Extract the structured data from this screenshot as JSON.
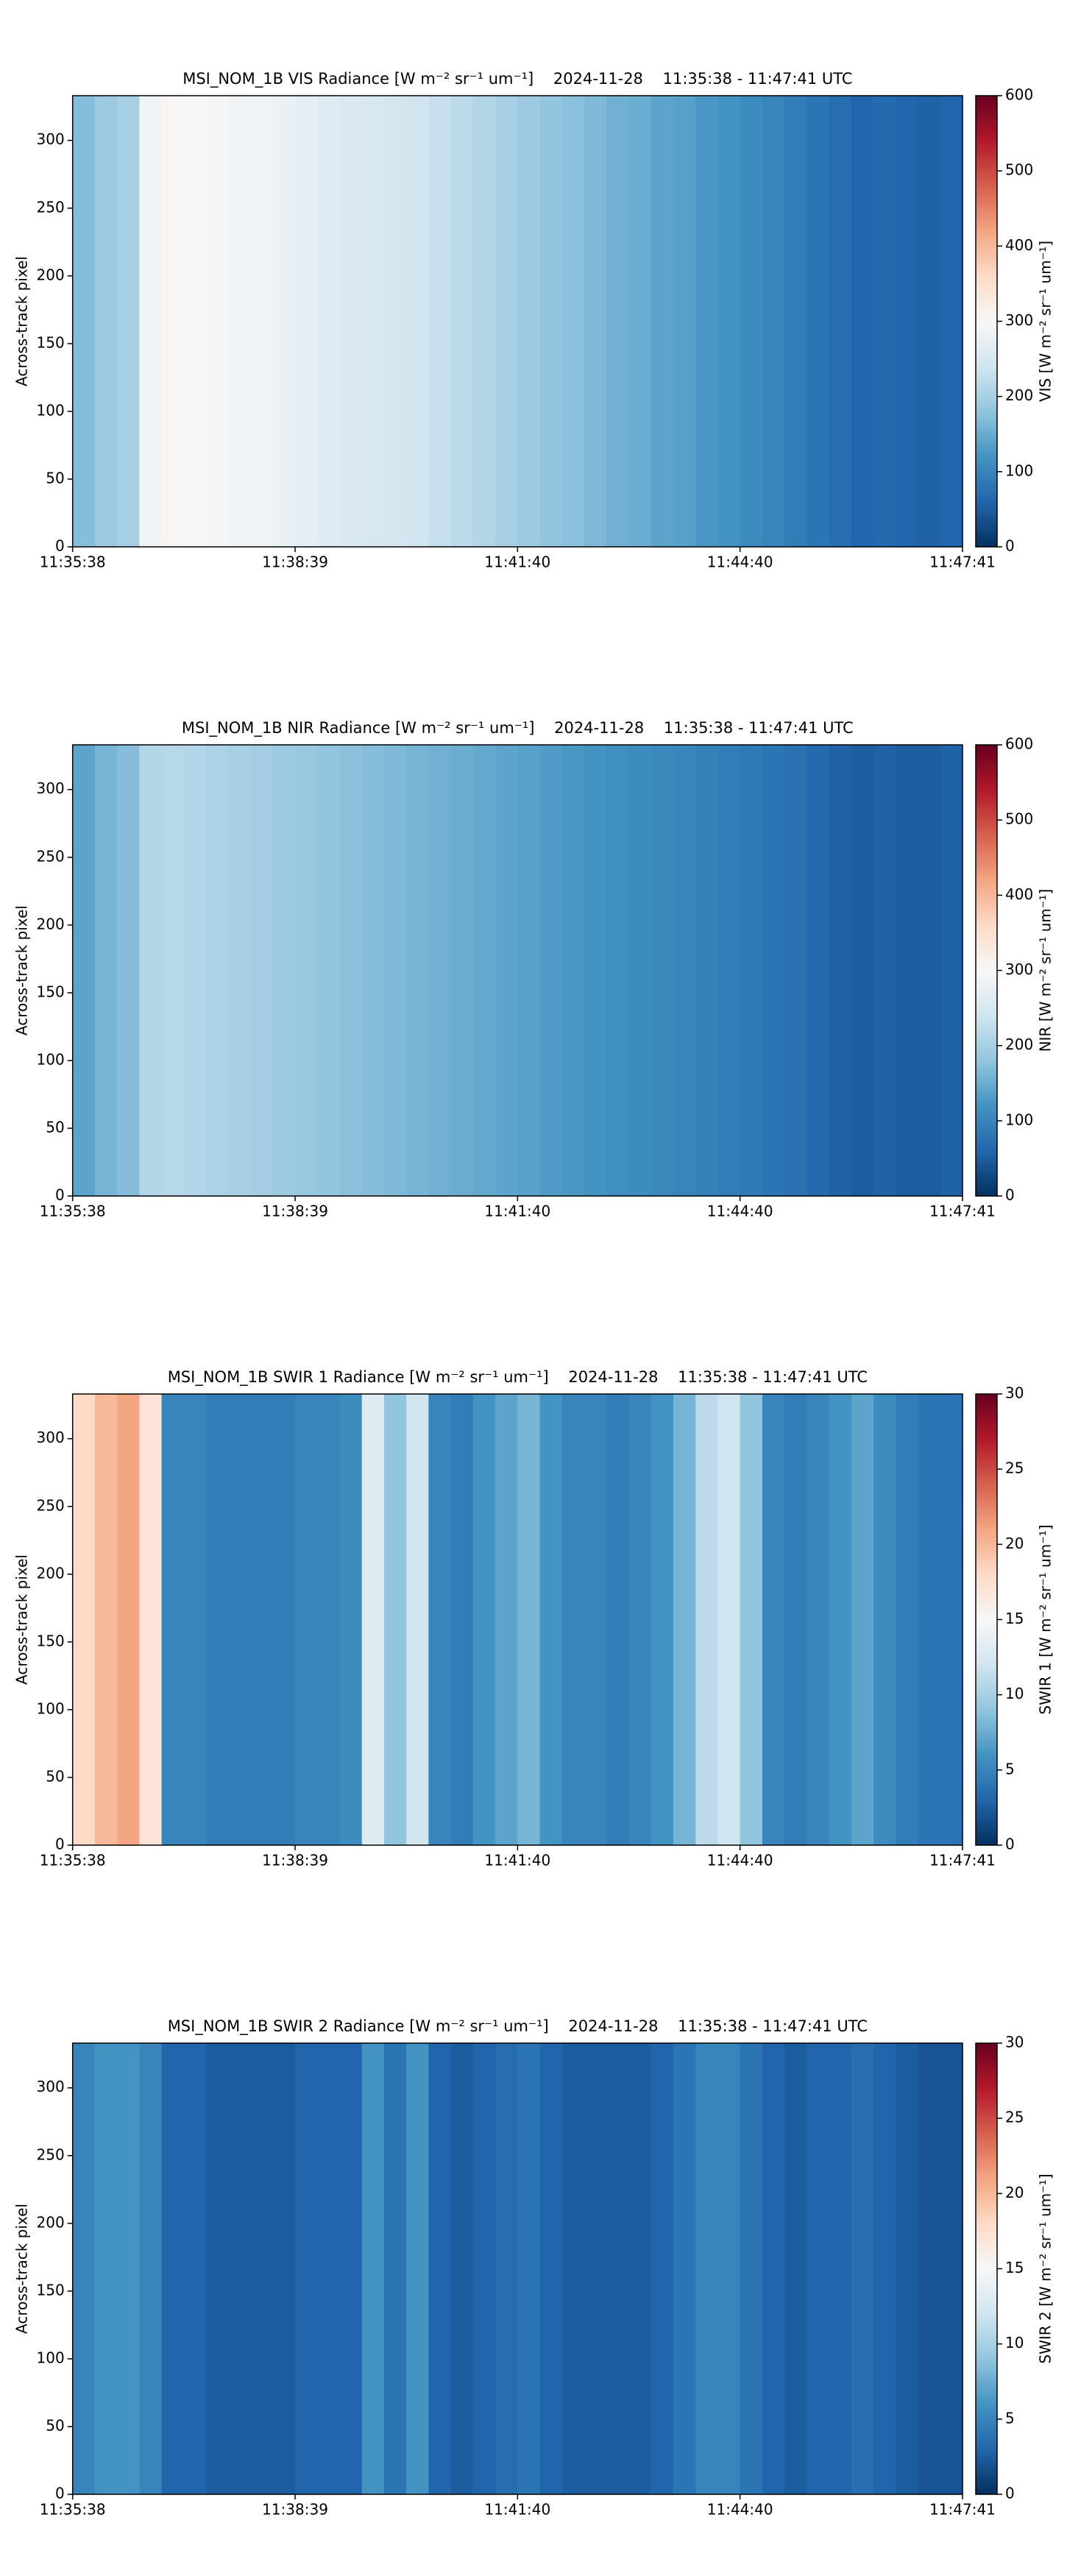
{
  "chart_data": [
    {
      "type": "heatmap",
      "title": "MSI_NOM_1B VIS Radiance [W m⁻² sr⁻¹ um⁻¹]    2024-11-28    11:35:38 - 11:47:41 UTC",
      "ylabel": "Across-track pixel",
      "xticks": [
        "11:35:38",
        "11:38:39",
        "11:41:40",
        "11:44:40",
        "11:47:41"
      ],
      "ylim": [
        0,
        333
      ],
      "yticks": [
        0,
        50,
        100,
        150,
        200,
        250,
        300
      ],
      "zlim": [
        0,
        600
      ],
      "zticks": [
        0,
        100,
        200,
        300,
        400,
        500,
        600
      ],
      "zlabel": "VIS [W m⁻² sr⁻¹ um⁻¹]",
      "colormap": "RdBu_r",
      "values": [
        170,
        190,
        200,
        290,
        305,
        300,
        295,
        290,
        285,
        280,
        270,
        260,
        255,
        250,
        245,
        240,
        230,
        220,
        210,
        200,
        190,
        180,
        175,
        165,
        155,
        150,
        140,
        135,
        125,
        120,
        110,
        100,
        90,
        80,
        70,
        60,
        65,
        60,
        55,
        60
      ]
    },
    {
      "type": "heatmap",
      "title": "MSI_NOM_1B NIR Radiance [W m⁻² sr⁻¹ um⁻¹]    2024-11-28    11:35:38 - 11:47:41 UTC",
      "ylabel": "Across-track pixel",
      "xticks": [
        "11:35:38",
        "11:38:39",
        "11:41:40",
        "11:44:40",
        "11:47:41"
      ],
      "ylim": [
        0,
        333
      ],
      "yticks": [
        0,
        50,
        100,
        150,
        200,
        250,
        300
      ],
      "zlim": [
        0,
        600
      ],
      "zticks": [
        0,
        100,
        200,
        300,
        400,
        500,
        600
      ],
      "zlabel": "NIR [W m⁻² sr⁻¹ um⁻¹]",
      "colormap": "RdBu_r",
      "values": [
        140,
        160,
        170,
        210,
        215,
        210,
        205,
        200,
        195,
        190,
        185,
        180,
        175,
        170,
        165,
        160,
        155,
        150,
        145,
        140,
        135,
        130,
        125,
        120,
        115,
        110,
        105,
        100,
        95,
        90,
        85,
        80,
        75,
        65,
        55,
        50,
        55,
        50,
        50,
        55
      ]
    },
    {
      "type": "heatmap",
      "title": "MSI_NOM_1B SWIR 1 Radiance [W m⁻² sr⁻¹ um⁻¹]    2024-11-28    11:35:38 - 11:47:41 UTC",
      "ylabel": "Across-track pixel",
      "xticks": [
        "11:35:38",
        "11:38:39",
        "11:41:40",
        "11:44:40",
        "11:47:41"
      ],
      "ylim": [
        0,
        333
      ],
      "yticks": [
        0,
        50,
        100,
        150,
        200,
        250,
        300
      ],
      "zlim": [
        0,
        30
      ],
      "zticks": [
        0,
        5,
        10,
        15,
        20,
        25,
        30
      ],
      "zlabel": "SWIR 1 [W m⁻² sr⁻¹ um⁻¹]",
      "colormap": "RdBu_r",
      "values": [
        18,
        20,
        21,
        17,
        5,
        5,
        4.5,
        4.5,
        4.5,
        4.5,
        5,
        5,
        5.5,
        13,
        9,
        12,
        5,
        4.5,
        6,
        7,
        8,
        6,
        5,
        5,
        4.5,
        5,
        6,
        8,
        11,
        12,
        9,
        5,
        4.5,
        5,
        6,
        7,
        5.5,
        4.5,
        4,
        4
      ]
    },
    {
      "type": "heatmap",
      "title": "MSI_NOM_1B SWIR 2 Radiance [W m⁻² sr⁻¹ um⁻¹]    2024-11-28    11:35:38 - 11:47:41 UTC",
      "ylabel": "Across-track pixel",
      "xticks": [
        "11:35:38",
        "11:38:39",
        "11:41:40",
        "11:44:40",
        "11:47:41"
      ],
      "ylim": [
        0,
        333
      ],
      "yticks": [
        0,
        50,
        100,
        150,
        200,
        250,
        300
      ],
      "zlim": [
        0,
        30
      ],
      "zticks": [
        0,
        5,
        10,
        15,
        20,
        25,
        30
      ],
      "zlabel": "SWIR 2 [W m⁻² sr⁻¹ um⁻¹]",
      "colormap": "RdBu_r",
      "values": [
        5,
        6,
        6,
        5,
        3,
        3,
        2.5,
        2.5,
        2.5,
        2.5,
        3,
        3,
        3,
        6,
        4,
        6,
        3,
        2.5,
        3,
        3.5,
        4,
        3,
        2.5,
        2.5,
        2.5,
        2.5,
        3,
        4,
        5,
        5,
        4,
        3,
        2.5,
        3,
        3,
        3.5,
        3,
        2.5,
        2,
        2
      ]
    }
  ]
}
